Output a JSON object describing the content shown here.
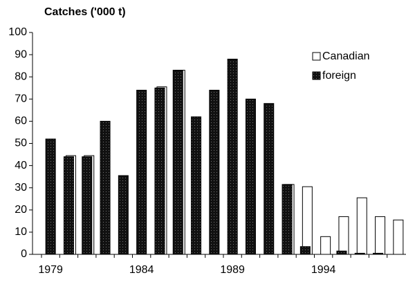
{
  "chart_data": {
    "type": "bar",
    "title": "Catches ('000 t)",
    "categories": [
      "1979",
      null,
      null,
      null,
      null,
      "1984",
      null,
      null,
      null,
      null,
      "1989",
      null,
      null,
      null,
      null,
      "1994",
      null,
      null,
      null,
      null
    ],
    "series": [
      {
        "name": "Canadian",
        "color": "#ffffff",
        "values": [
          0,
          44.5,
          44.5,
          0,
          0,
          0,
          75.5,
          83,
          0,
          0,
          0,
          0,
          0,
          31.5,
          30.5,
          8,
          17,
          25.5,
          17,
          15.5
        ]
      },
      {
        "name": "foreign",
        "color": "#111111",
        "values": [
          52,
          44,
          44,
          60,
          35.5,
          74,
          75,
          83,
          62,
          74,
          88,
          70,
          68,
          31.5,
          3.5,
          0,
          1.5,
          0.5,
          0.5,
          0
        ]
      }
    ],
    "ylim": [
      0,
      100
    ],
    "yticks": [
      0,
      10,
      20,
      30,
      40,
      50,
      60,
      70,
      80,
      90,
      100
    ],
    "legend": "top-right"
  }
}
